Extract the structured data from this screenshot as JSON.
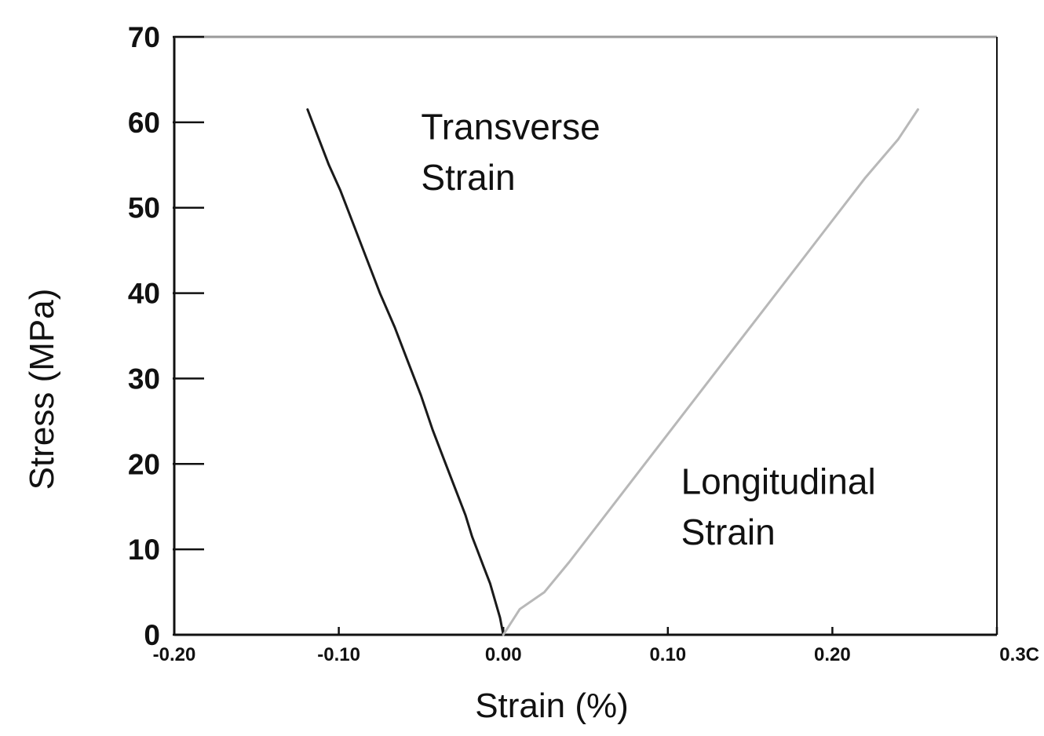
{
  "chart_data": {
    "type": "line",
    "title": "",
    "xlabel": "Strain (%)",
    "ylabel": "Stress (MPa)",
    "xlim": [
      -0.2,
      0.3
    ],
    "ylim": [
      0,
      70
    ],
    "x_ticks": [
      -0.2,
      -0.1,
      0.0,
      0.1,
      0.2,
      0.3
    ],
    "x_tick_labels": [
      "-0.20",
      "-0.10",
      "0.00",
      "0.10",
      "0.20",
      "0.3C"
    ],
    "y_ticks": [
      0,
      10,
      20,
      30,
      40,
      50,
      60,
      70
    ],
    "y_tick_labels": [
      "0",
      "10",
      "20",
      "30",
      "40",
      "50",
      "60",
      "70"
    ],
    "grid": false,
    "series": [
      {
        "name": "Transverse Strain",
        "color": "#1a1a1a",
        "points": [
          [
            0.0,
            0
          ],
          [
            -0.002,
            2
          ],
          [
            -0.005,
            4
          ],
          [
            -0.008,
            6
          ],
          [
            -0.012,
            8
          ],
          [
            -0.016,
            10
          ],
          [
            -0.019,
            11.5
          ],
          [
            -0.023,
            14
          ],
          [
            -0.029,
            17
          ],
          [
            -0.036,
            20.5
          ],
          [
            -0.043,
            24
          ],
          [
            -0.05,
            28
          ],
          [
            -0.058,
            32
          ],
          [
            -0.066,
            36
          ],
          [
            -0.075,
            40
          ],
          [
            -0.083,
            44
          ],
          [
            -0.091,
            48
          ],
          [
            -0.099,
            52
          ],
          [
            -0.106,
            55
          ],
          [
            -0.112,
            58
          ],
          [
            -0.119,
            61.5
          ]
        ]
      },
      {
        "name": "Longitudinal Strain",
        "color": "#b8b8b8",
        "points": [
          [
            0.0,
            0
          ],
          [
            0.01,
            3
          ],
          [
            0.025,
            5
          ],
          [
            0.04,
            8.5
          ],
          [
            0.06,
            13.5
          ],
          [
            0.08,
            18.5
          ],
          [
            0.1,
            23.5
          ],
          [
            0.12,
            28.5
          ],
          [
            0.14,
            33.5
          ],
          [
            0.16,
            38.5
          ],
          [
            0.18,
            43.5
          ],
          [
            0.2,
            48.5
          ],
          [
            0.22,
            53.5
          ],
          [
            0.24,
            58
          ],
          [
            0.252,
            61.5
          ]
        ]
      }
    ],
    "annotations": [
      {
        "lines": [
          "Transverse",
          "Strain"
        ],
        "x": -0.05,
        "y": 58
      },
      {
        "lines": [
          "Longitudinal",
          "Strain"
        ],
        "x": 0.108,
        "y": 16.5
      }
    ]
  }
}
